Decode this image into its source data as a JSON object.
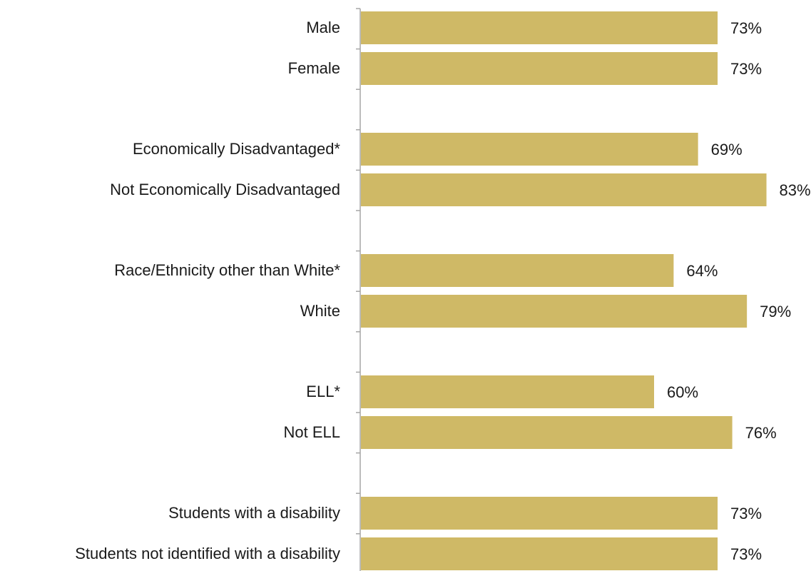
{
  "chart_data": {
    "type": "bar",
    "orientation": "horizontal",
    "title": "",
    "xlabel": "",
    "ylabel": "",
    "xlim": [
      0,
      100
    ],
    "bar_color": "#CFB966",
    "axis_color": "#A6A6A6",
    "grid": false,
    "legend": "none",
    "groups": [
      {
        "categories": [
          "Male",
          "Female"
        ],
        "values": [
          73,
          73
        ],
        "labels": [
          "73%",
          "73%"
        ]
      },
      {
        "categories": [
          "Economically Disadvantaged*",
          "Not Economically Disadvantaged"
        ],
        "values": [
          69,
          83
        ],
        "labels": [
          "69%",
          "83%"
        ]
      },
      {
        "categories": [
          "Race/Ethnicity other than White*",
          "White"
        ],
        "values": [
          64,
          79
        ],
        "labels": [
          "64%",
          "79%"
        ]
      },
      {
        "categories": [
          "ELL*",
          "Not ELL"
        ],
        "values": [
          60,
          76
        ],
        "labels": [
          "60%",
          "76%"
        ]
      },
      {
        "categories": [
          "Students with a disability",
          "Students not identified with a disability"
        ],
        "values": [
          73,
          73
        ],
        "labels": [
          "73%",
          "73%"
        ]
      }
    ]
  }
}
